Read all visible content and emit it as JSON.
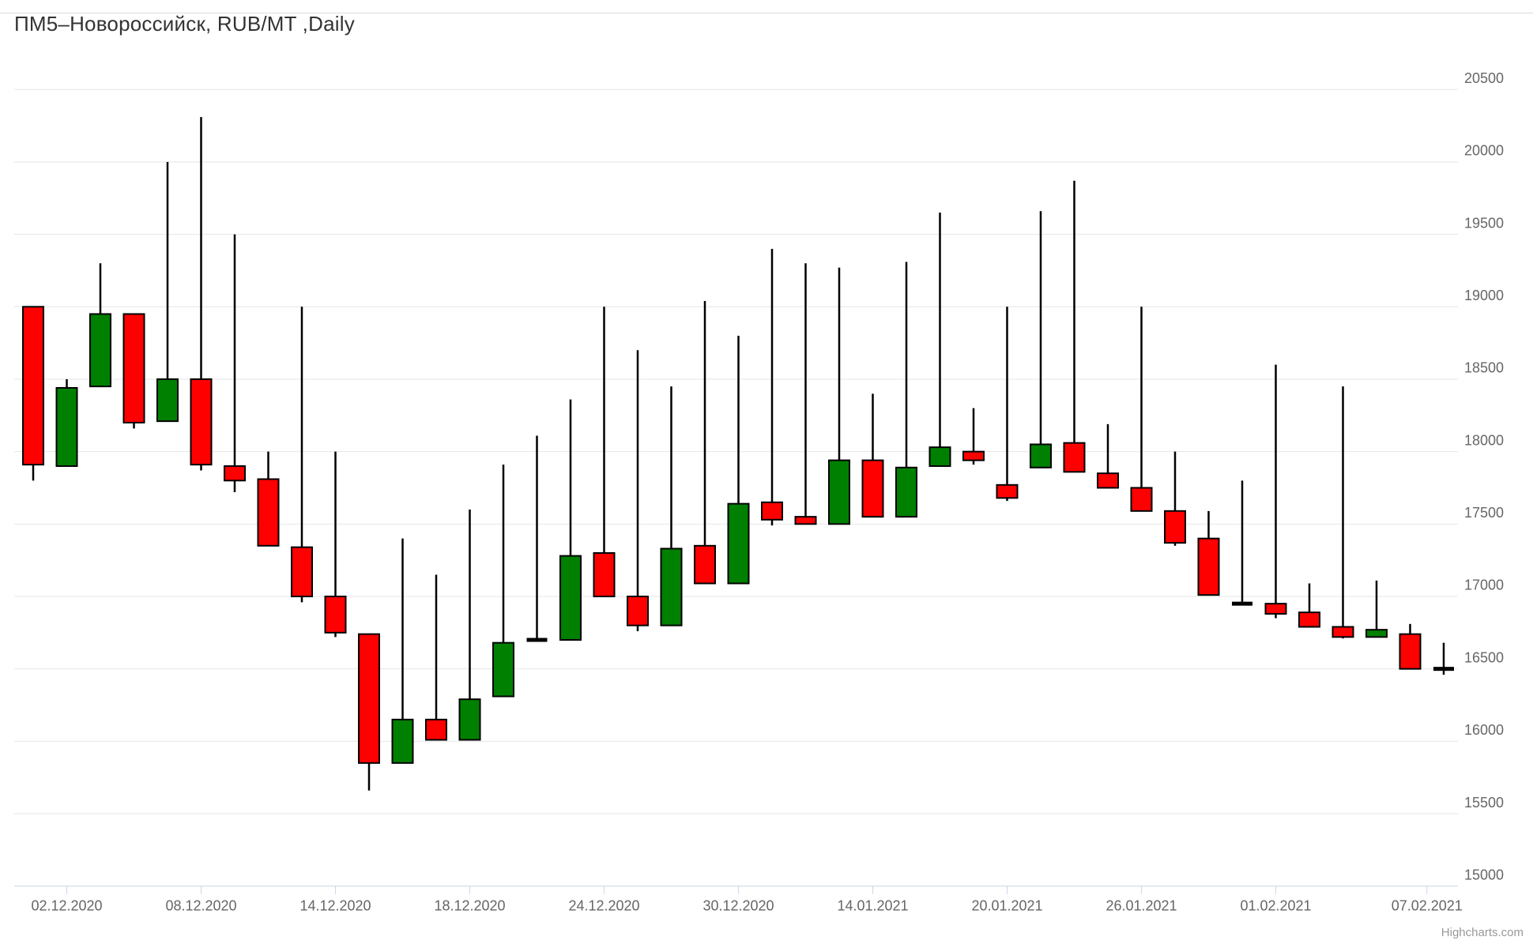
{
  "title": "ПМ5–Новороссийск, RUB/MT ,Daily",
  "credits_label": "Highcharts.com",
  "colors": {
    "up": "#008000",
    "down": "#ff0000",
    "candle_outline": "#000000",
    "grid": "#e6e6e6",
    "axis_line": "#ccd6eb",
    "tick_mark": "#ccd6eb",
    "axis_label": "#666666",
    "title_text": "#333333",
    "credits_text": "#999999",
    "background": "#ffffff"
  },
  "chart_data": {
    "type": "candlestick",
    "title": "ПМ5–Новороссийск, RUB/MT ,Daily",
    "xlabel": "",
    "ylabel": "",
    "ylim": [
      15000,
      20500
    ],
    "y_tick_interval": 500,
    "grid": true,
    "legend": false,
    "y_axis_position": "right",
    "y_tick_labels": [
      "20500",
      "20000",
      "19500",
      "19000",
      "18500",
      "18000",
      "17500",
      "17000",
      "16500",
      "16000",
      "15500",
      "15000"
    ],
    "x_ticks": [
      {
        "label": "02.12.2020",
        "index": 1
      },
      {
        "label": "08.12.2020",
        "index": 5
      },
      {
        "label": "14.12.2020",
        "index": 9
      },
      {
        "label": "18.12.2020",
        "index": 13
      },
      {
        "label": "24.12.2020",
        "index": 17
      },
      {
        "label": "30.12.2020",
        "index": 21
      },
      {
        "label": "14.01.2021",
        "index": 25
      },
      {
        "label": "20.01.2021",
        "index": 29
      },
      {
        "label": "26.01.2021",
        "index": 33
      },
      {
        "label": "01.02.2021",
        "index": 37
      },
      {
        "label": "07.02.2021",
        "index": 41.5
      }
    ],
    "ohlc_note": "each entry is [open, high, low, close] in RUB/MT",
    "ohlc": [
      [
        19000,
        19000,
        17800,
        17910
      ],
      [
        17900,
        18500,
        17900,
        18440
      ],
      [
        18450,
        19300,
        18450,
        18950
      ],
      [
        18950,
        18950,
        18160,
        18200
      ],
      [
        18210,
        20000,
        18210,
        18500
      ],
      [
        18500,
        20310,
        17870,
        17910
      ],
      [
        17900,
        19500,
        17720,
        17800
      ],
      [
        17810,
        18000,
        17350,
        17350
      ],
      [
        17340,
        19000,
        16960,
        17000
      ],
      [
        17000,
        18000,
        16720,
        16750
      ],
      [
        16740,
        16740,
        15660,
        15850
      ],
      [
        15850,
        17400,
        15850,
        16150
      ],
      [
        16150,
        17150,
        16010,
        16010
      ],
      [
        16010,
        17600,
        16010,
        16290
      ],
      [
        16310,
        17910,
        16310,
        16680
      ],
      [
        16700,
        18110,
        16690,
        16700
      ],
      [
        16700,
        18360,
        16700,
        17280
      ],
      [
        17300,
        19000,
        17000,
        17000
      ],
      [
        17000,
        18700,
        16760,
        16800
      ],
      [
        16800,
        18450,
        16800,
        17330
      ],
      [
        17350,
        19040,
        17090,
        17090
      ],
      [
        17090,
        18800,
        17090,
        17640
      ],
      [
        17650,
        19400,
        17490,
        17530
      ],
      [
        17550,
        19300,
        17500,
        17500
      ],
      [
        17500,
        19270,
        17500,
        17940
      ],
      [
        17940,
        18400,
        17550,
        17550
      ],
      [
        17550,
        19310,
        17550,
        17890
      ],
      [
        17900,
        19650,
        17900,
        18030
      ],
      [
        18000,
        18300,
        17910,
        17940
      ],
      [
        17770,
        19000,
        17660,
        17680
      ],
      [
        17890,
        19660,
        17890,
        18050
      ],
      [
        18060,
        19870,
        17860,
        17860
      ],
      [
        17850,
        18190,
        17750,
        17750
      ],
      [
        17750,
        19000,
        17590,
        17590
      ],
      [
        17590,
        18000,
        17350,
        17370
      ],
      [
        17400,
        17590,
        17010,
        17010
      ],
      [
        16950,
        17800,
        16940,
        16950
      ],
      [
        16950,
        18600,
        16850,
        16880
      ],
      [
        16890,
        17090,
        16790,
        16790
      ],
      [
        16790,
        18450,
        16710,
        16720
      ],
      [
        16720,
        17110,
        16720,
        16770
      ],
      [
        16740,
        16810,
        16500,
        16500
      ],
      [
        16500,
        16680,
        16460,
        16500
      ]
    ]
  }
}
